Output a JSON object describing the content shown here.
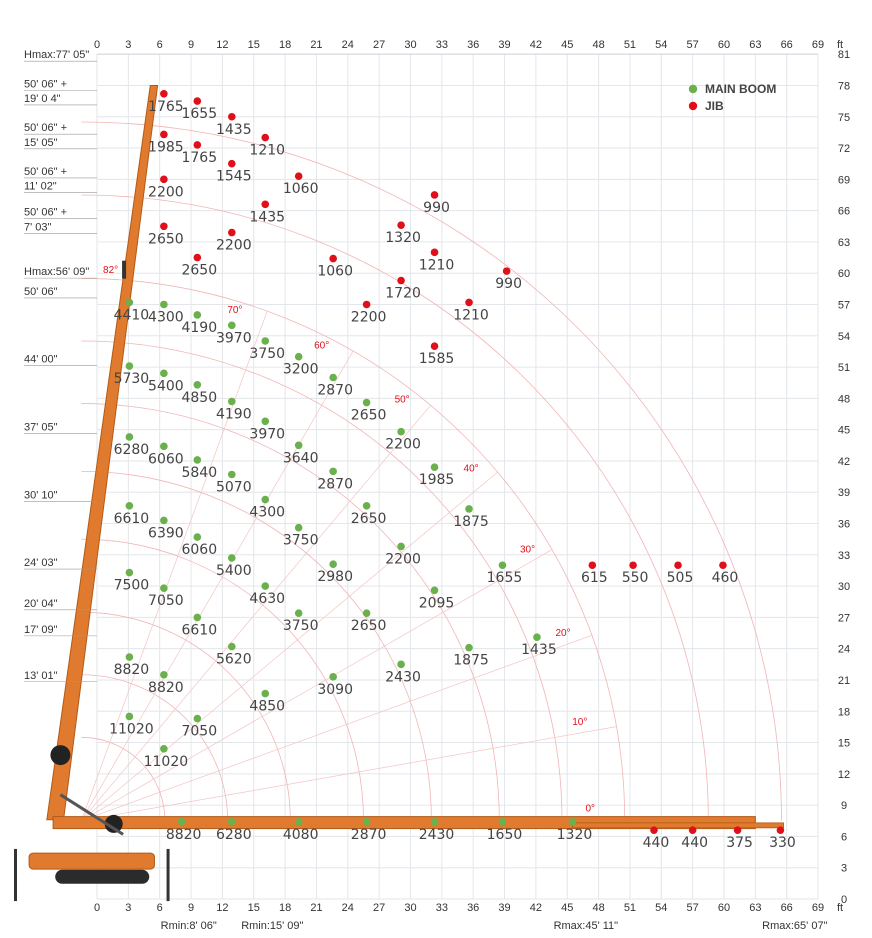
{
  "chart_data": {
    "type": "scatter",
    "title": "",
    "xlabel": "ft",
    "ylabel": "ft",
    "xlim": [
      0,
      69
    ],
    "ylim": [
      0,
      81
    ],
    "x_ticks": [
      0,
      3,
      6,
      9,
      12,
      15,
      18,
      21,
      24,
      27,
      30,
      33,
      36,
      39,
      42,
      45,
      48,
      51,
      54,
      57,
      60,
      63,
      66,
      69
    ],
    "y_ticks": [
      0,
      3,
      6,
      9,
      12,
      15,
      18,
      21,
      24,
      27,
      30,
      33,
      36,
      39,
      42,
      45,
      48,
      51,
      54,
      57,
      60,
      63,
      66,
      69,
      72,
      75,
      78,
      81
    ],
    "unit": "ft",
    "legend": {
      "position": "top-right",
      "items": [
        {
          "name": "MAIN BOOM",
          "color": "#6ab04c"
        },
        {
          "name": "JIB",
          "color": "#e0101a"
        }
      ]
    },
    "left_labels": [
      {
        "text": "Hmax:77' 05\"",
        "y": 81
      },
      {
        "text": "50' 06\" +",
        "y": 78.2
      },
      {
        "text": "19' 0 4\"",
        "y": 76.8
      },
      {
        "text": "50' 06\" +",
        "y": 74
      },
      {
        "text": "15' 05\"",
        "y": 72.6
      },
      {
        "text": "50' 06\" +",
        "y": 69.8
      },
      {
        "text": "11' 02\"",
        "y": 68.4
      },
      {
        "text": "50' 06\" +",
        "y": 65.9
      },
      {
        "text": "7' 03\"",
        "y": 64.5
      },
      {
        "text": "Hmax:56' 09\"",
        "y": 60.2
      },
      {
        "text": "50' 06\"",
        "y": 58.3
      },
      {
        "text": "44' 00\"",
        "y": 51.8
      },
      {
        "text": "37' 05\"",
        "y": 45.3
      },
      {
        "text": "30' 10\"",
        "y": 38.8
      },
      {
        "text": "24' 03\"",
        "y": 32.3
      },
      {
        "text": "20' 04\"",
        "y": 28.4
      },
      {
        "text": "17' 09\"",
        "y": 25.9
      },
      {
        "text": "13' 01\"",
        "y": 21.5
      }
    ],
    "bottom_labels": [
      {
        "text": "Rmin:8' 06\"",
        "x": 10.5
      },
      {
        "text": "Rmin:15' 09\"",
        "x": 18.5
      },
      {
        "text": "Rmax:45' 11\"",
        "x": 48.5
      },
      {
        "text": "Rmax:65' 07\"",
        "x": 68.5
      }
    ],
    "angle_labels": [
      {
        "text": "82°",
        "x": 1.3,
        "y": 60
      },
      {
        "text": "70°",
        "x": 13.2,
        "y": 56.2
      },
      {
        "text": "60°",
        "x": 21.5,
        "y": 52.8
      },
      {
        "text": "50°",
        "x": 29.2,
        "y": 47.6
      },
      {
        "text": "40°",
        "x": 35.8,
        "y": 41
      },
      {
        "text": "30°",
        "x": 41.2,
        "y": 33.2
      },
      {
        "text": "20°",
        "x": 44.6,
        "y": 25.2
      },
      {
        "text": "10°",
        "x": 46.2,
        "y": 16.7
      },
      {
        "text": "0°",
        "x": 47.2,
        "y": 8.4
      }
    ],
    "main_boom": [
      {
        "x": 3.1,
        "y": 57.2,
        "v": "4410"
      },
      {
        "x": 6.4,
        "y": 57.0,
        "v": "4300"
      },
      {
        "x": 9.6,
        "y": 56.0,
        "v": "4190"
      },
      {
        "x": 12.9,
        "y": 55.0,
        "v": "3970"
      },
      {
        "x": 16.1,
        "y": 53.5,
        "v": "3750"
      },
      {
        "x": 19.3,
        "y": 52.0,
        "v": "3200"
      },
      {
        "x": 22.6,
        "y": 50.0,
        "v": "2870"
      },
      {
        "x": 25.8,
        "y": 47.6,
        "v": "2650"
      },
      {
        "x": 29.1,
        "y": 44.8,
        "v": "2200"
      },
      {
        "x": 32.3,
        "y": 41.4,
        "v": "1985"
      },
      {
        "x": 35.6,
        "y": 37.4,
        "v": "1875"
      },
      {
        "x": 38.8,
        "y": 32.0,
        "v": "1655"
      },
      {
        "x": 42.1,
        "y": 25.1,
        "v": "1435"
      },
      {
        "x": 45.5,
        "y": 7.4,
        "v": "1320"
      },
      {
        "x": 3.1,
        "y": 51.1,
        "v": "5730"
      },
      {
        "x": 6.4,
        "y": 50.4,
        "v": "5400"
      },
      {
        "x": 9.6,
        "y": 49.3,
        "v": "4850"
      },
      {
        "x": 12.9,
        "y": 47.7,
        "v": "4190"
      },
      {
        "x": 16.1,
        "y": 45.8,
        "v": "3970"
      },
      {
        "x": 19.3,
        "y": 43.5,
        "v": "3640"
      },
      {
        "x": 22.6,
        "y": 41.0,
        "v": "2870"
      },
      {
        "x": 25.8,
        "y": 37.7,
        "v": "2650"
      },
      {
        "x": 29.1,
        "y": 33.8,
        "v": "2200"
      },
      {
        "x": 32.3,
        "y": 29.6,
        "v": "2095"
      },
      {
        "x": 35.6,
        "y": 24.1,
        "v": "1875"
      },
      {
        "x": 3.1,
        "y": 44.3,
        "v": "6280"
      },
      {
        "x": 6.4,
        "y": 43.4,
        "v": "6060"
      },
      {
        "x": 9.6,
        "y": 42.1,
        "v": "5840"
      },
      {
        "x": 12.9,
        "y": 40.7,
        "v": "5070"
      },
      {
        "x": 16.1,
        "y": 38.3,
        "v": "4300"
      },
      {
        "x": 19.3,
        "y": 35.6,
        "v": "3750"
      },
      {
        "x": 22.6,
        "y": 32.1,
        "v": "2980"
      },
      {
        "x": 25.8,
        "y": 27.4,
        "v": "2650"
      },
      {
        "x": 29.1,
        "y": 22.5,
        "v": "2430"
      },
      {
        "x": 22.6,
        "y": 21.3,
        "v": "3090"
      },
      {
        "x": 3.1,
        "y": 37.7,
        "v": "6610"
      },
      {
        "x": 6.4,
        "y": 36.3,
        "v": "6390"
      },
      {
        "x": 9.6,
        "y": 34.7,
        "v": "6060"
      },
      {
        "x": 12.9,
        "y": 32.7,
        "v": "5400"
      },
      {
        "x": 16.1,
        "y": 30.0,
        "v": "4630"
      },
      {
        "x": 19.3,
        "y": 27.4,
        "v": "3750"
      },
      {
        "x": 3.1,
        "y": 31.3,
        "v": "7500"
      },
      {
        "x": 6.4,
        "y": 29.8,
        "v": "7050"
      },
      {
        "x": 9.6,
        "y": 27.0,
        "v": "6610"
      },
      {
        "x": 12.9,
        "y": 24.2,
        "v": "5620"
      },
      {
        "x": 16.1,
        "y": 19.7,
        "v": "4850"
      },
      {
        "x": 3.1,
        "y": 23.2,
        "v": "8820"
      },
      {
        "x": 6.4,
        "y": 21.5,
        "v": "8820"
      },
      {
        "x": 3.1,
        "y": 17.5,
        "v": "11020"
      },
      {
        "x": 9.6,
        "y": 17.3,
        "v": "7050"
      },
      {
        "x": 6.4,
        "y": 14.4,
        "v": "11020"
      },
      {
        "x": 8.1,
        "y": 7.4,
        "v": "8820"
      },
      {
        "x": 12.9,
        "y": 7.4,
        "v": "6280"
      },
      {
        "x": 19.3,
        "y": 7.4,
        "v": "4080"
      },
      {
        "x": 25.8,
        "y": 7.4,
        "v": "2870"
      },
      {
        "x": 32.3,
        "y": 7.4,
        "v": "2430"
      },
      {
        "x": 38.8,
        "y": 7.4,
        "v": "1650"
      }
    ],
    "jib": [
      {
        "x": 6.4,
        "y": 77.2,
        "v": "1765"
      },
      {
        "x": 9.6,
        "y": 76.5,
        "v": "1655"
      },
      {
        "x": 12.9,
        "y": 75.0,
        "v": "1435"
      },
      {
        "x": 16.1,
        "y": 73.0,
        "v": "1210"
      },
      {
        "x": 6.4,
        "y": 73.3,
        "v": "1985"
      },
      {
        "x": 9.6,
        "y": 72.3,
        "v": "1765"
      },
      {
        "x": 12.9,
        "y": 70.5,
        "v": "1545"
      },
      {
        "x": 19.3,
        "y": 69.3,
        "v": "1060"
      },
      {
        "x": 6.4,
        "y": 69.0,
        "v": "2200"
      },
      {
        "x": 16.1,
        "y": 66.6,
        "v": "1435"
      },
      {
        "x": 6.4,
        "y": 64.5,
        "v": "2650"
      },
      {
        "x": 12.9,
        "y": 63.9,
        "v": "2200"
      },
      {
        "x": 9.6,
        "y": 61.5,
        "v": "2650"
      },
      {
        "x": 22.6,
        "y": 61.4,
        "v": "1060"
      },
      {
        "x": 32.3,
        "y": 67.5,
        "v": "990"
      },
      {
        "x": 29.1,
        "y": 64.6,
        "v": "1320"
      },
      {
        "x": 32.3,
        "y": 62.0,
        "v": "1210"
      },
      {
        "x": 39.2,
        "y": 60.2,
        "v": "990"
      },
      {
        "x": 29.1,
        "y": 59.3,
        "v": "1720"
      },
      {
        "x": 25.8,
        "y": 57.0,
        "v": "2200"
      },
      {
        "x": 35.6,
        "y": 57.2,
        "v": "1210"
      },
      {
        "x": 32.3,
        "y": 53.0,
        "v": "1585"
      },
      {
        "x": 47.4,
        "y": 32.0,
        "v": "615"
      },
      {
        "x": 51.3,
        "y": 32.0,
        "v": "550"
      },
      {
        "x": 55.6,
        "y": 32.0,
        "v": "505"
      },
      {
        "x": 59.9,
        "y": 32.0,
        "v": "460"
      },
      {
        "x": 53.3,
        "y": 6.6,
        "v": "440"
      },
      {
        "x": 57.0,
        "y": 6.6,
        "v": "440"
      },
      {
        "x": 61.3,
        "y": 6.6,
        "v": "375"
      },
      {
        "x": 65.4,
        "y": 6.6,
        "v": "330"
      }
    ]
  }
}
